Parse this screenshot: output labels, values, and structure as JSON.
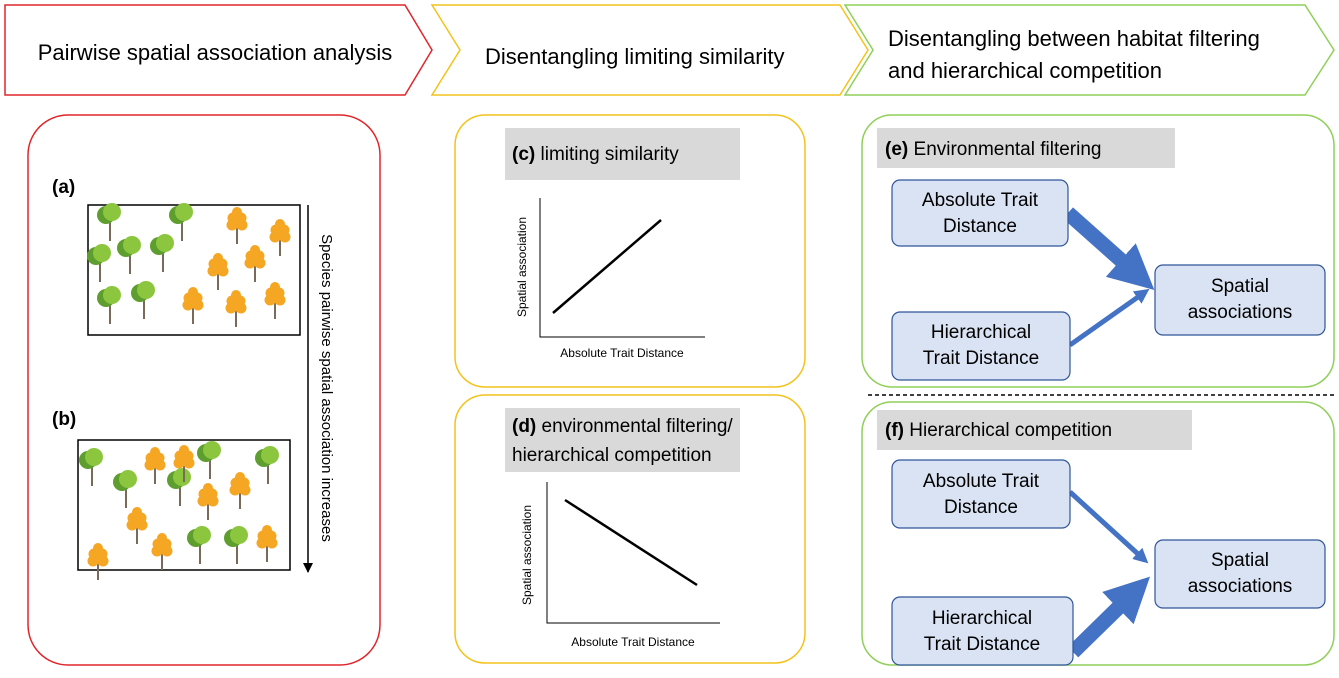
{
  "header": {
    "steps": [
      {
        "lines": [
          "Pairwise spatial association analysis"
        ]
      },
      {
        "lines": [
          "Disentangling limiting similarity"
        ]
      },
      {
        "lines": [
          "Disentangling between habitat filtering",
          "and hierarchical competition"
        ]
      }
    ]
  },
  "panel_a": {
    "label": "(a)"
  },
  "panel_b": {
    "label": "(b)"
  },
  "gradient": "Species pairwise spatial association increases",
  "panel_c": {
    "label": "(c)",
    "title": [
      "limiting similarity"
    ],
    "y_axis": "Spatial association",
    "x_axis": "Absolute Trait Distance"
  },
  "panel_d": {
    "label": "(d)",
    "title": [
      "environmental filtering/",
      "hierarchical competition"
    ],
    "y_axis": "Spatial association",
    "x_axis": "Absolute Trait Distance"
  },
  "panel_e": {
    "label": "(e)",
    "title": "Environmental filtering",
    "nodes": [
      {
        "lines": [
          "Absolute Trait",
          "Distance"
        ]
      },
      {
        "lines": [
          "Hierarchical",
          "Trait Distance"
        ]
      },
      {
        "lines": [
          "Spatial",
          "associations"
        ]
      }
    ]
  },
  "panel_f": {
    "label": "(f)",
    "title": "Hierarchical competition",
    "nodes": [
      {
        "lines": [
          "Absolute Trait",
          "Distance"
        ]
      },
      {
        "lines": [
          "Hierarchical",
          "Trait Distance"
        ]
      },
      {
        "lines": [
          "Spatial",
          "associations"
        ]
      }
    ]
  }
}
